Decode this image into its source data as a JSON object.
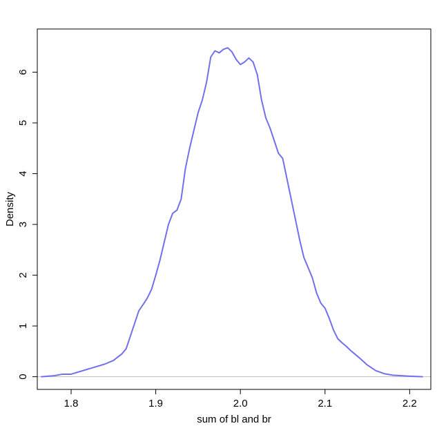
{
  "chart_data": {
    "type": "line",
    "title": "",
    "xlabel": "sum of bl and br",
    "ylabel": "Density",
    "xlim": [
      1.76,
      2.225
    ],
    "ylim": [
      -0.25,
      6.85
    ],
    "x_ticks": [
      1.8,
      1.9,
      2.0,
      2.1,
      2.2
    ],
    "x_tick_labels": [
      "1.8",
      "1.9",
      "2.0",
      "2.1",
      "2.2"
    ],
    "y_ticks": [
      0,
      1,
      2,
      3,
      4,
      5,
      6
    ],
    "y_tick_labels": [
      "0",
      "1",
      "2",
      "3",
      "4",
      "5",
      "6"
    ],
    "grid": false,
    "legend": "none",
    "baseline": 0,
    "baseline_color": "#bebebe",
    "series": [
      {
        "color": "#7070ee",
        "x": [
          1.765,
          1.78,
          1.79,
          1.8,
          1.81,
          1.82,
          1.83,
          1.84,
          1.85,
          1.86,
          1.865,
          1.87,
          1.875,
          1.88,
          1.885,
          1.89,
          1.895,
          1.9,
          1.905,
          1.91,
          1.915,
          1.92,
          1.925,
          1.93,
          1.935,
          1.94,
          1.945,
          1.95,
          1.955,
          1.96,
          1.965,
          1.97,
          1.975,
          1.98,
          1.985,
          1.99,
          1.995,
          2.0,
          2.005,
          2.01,
          2.015,
          2.02,
          2.025,
          2.03,
          2.035,
          2.04,
          2.045,
          2.05,
          2.055,
          2.06,
          2.065,
          2.07,
          2.075,
          2.08,
          2.085,
          2.09,
          2.095,
          2.1,
          2.105,
          2.11,
          2.115,
          2.12,
          2.125,
          2.13,
          2.14,
          2.15,
          2.16,
          2.17,
          2.18,
          2.19,
          2.2,
          2.215
        ],
        "y": [
          0.0,
          0.02,
          0.05,
          0.05,
          0.1,
          0.15,
          0.2,
          0.25,
          0.32,
          0.45,
          0.55,
          0.8,
          1.05,
          1.3,
          1.42,
          1.55,
          1.72,
          2.0,
          2.3,
          2.65,
          3.0,
          3.22,
          3.28,
          3.5,
          4.1,
          4.5,
          4.85,
          5.2,
          5.45,
          5.8,
          6.3,
          6.42,
          6.38,
          6.45,
          6.48,
          6.4,
          6.25,
          6.15,
          6.2,
          6.28,
          6.2,
          5.95,
          5.45,
          5.1,
          4.9,
          4.65,
          4.4,
          4.3,
          3.9,
          3.5,
          3.1,
          2.7,
          2.35,
          2.15,
          1.95,
          1.65,
          1.45,
          1.35,
          1.15,
          0.92,
          0.75,
          0.67,
          0.6,
          0.52,
          0.38,
          0.23,
          0.12,
          0.06,
          0.03,
          0.02,
          0.01,
          0.0
        ]
      }
    ]
  }
}
